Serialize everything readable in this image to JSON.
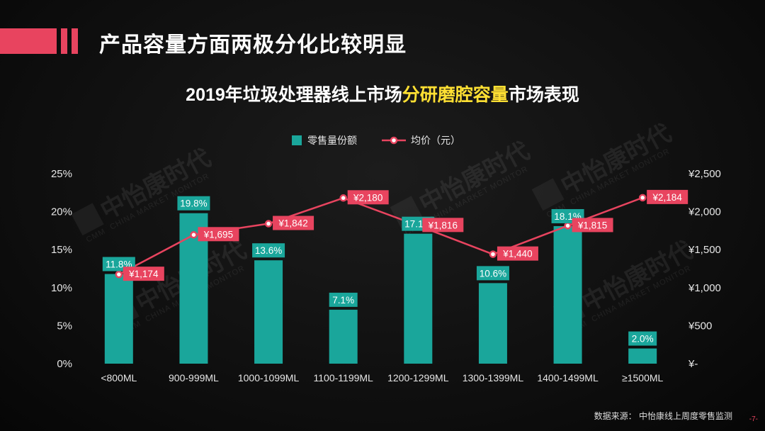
{
  "page": {
    "title": "产品容量方面两极分化比较明显",
    "chart_title_pre": "2019年垃圾处理器线上市场",
    "chart_title_hl": "分研磨腔容量",
    "chart_title_post": "市场表现",
    "source": "数据来源：  中怡康线上周度零售监测",
    "page_number": "-7-",
    "watermark_cn": "中怡康时代",
    "watermark_en": "CHINA MARKET MONITOR",
    "watermark_logo": "CMM"
  },
  "colors": {
    "bar": "#1aa69b",
    "line": "#e8445f",
    "accent": "#e8445f",
    "highlight": "#ffe033"
  },
  "chart_data": {
    "type": "bar",
    "categories": [
      "<800ML",
      "900-999ML",
      "1000-1099ML",
      "1100-1199ML",
      "1200-1299ML",
      "1300-1399ML",
      "1400-1499ML",
      "≥1500ML"
    ],
    "series": [
      {
        "name": "零售量份额",
        "type": "bar",
        "axis": "left",
        "values": [
          11.8,
          19.8,
          13.6,
          7.1,
          17.1,
          10.6,
          18.1,
          2.0
        ],
        "labels": [
          "11.8%",
          "19.8%",
          "13.6%",
          "7.1%",
          "17.1%",
          "10.6%",
          "18.1%",
          "2.0%"
        ]
      },
      {
        "name": "均价（元）",
        "type": "line",
        "axis": "right",
        "values": [
          1174,
          1695,
          1842,
          2180,
          1816,
          1440,
          1815,
          2184
        ],
        "labels": [
          "¥1,174",
          "¥1,695",
          "¥1,842",
          "¥2,180",
          "¥1,816",
          "¥1,440",
          "¥1,815",
          "¥2,184"
        ]
      }
    ],
    "y_left": {
      "min": 0,
      "max": 25,
      "ticks": [
        "0%",
        "5%",
        "10%",
        "15%",
        "20%",
        "25%"
      ]
    },
    "y_right": {
      "min": 0,
      "max": 2500,
      "ticks": [
        "¥-",
        "¥500",
        "¥1,000",
        "¥1,500",
        "¥2,000",
        "¥2,500"
      ]
    },
    "legend_position": "top-center",
    "grid": false
  }
}
